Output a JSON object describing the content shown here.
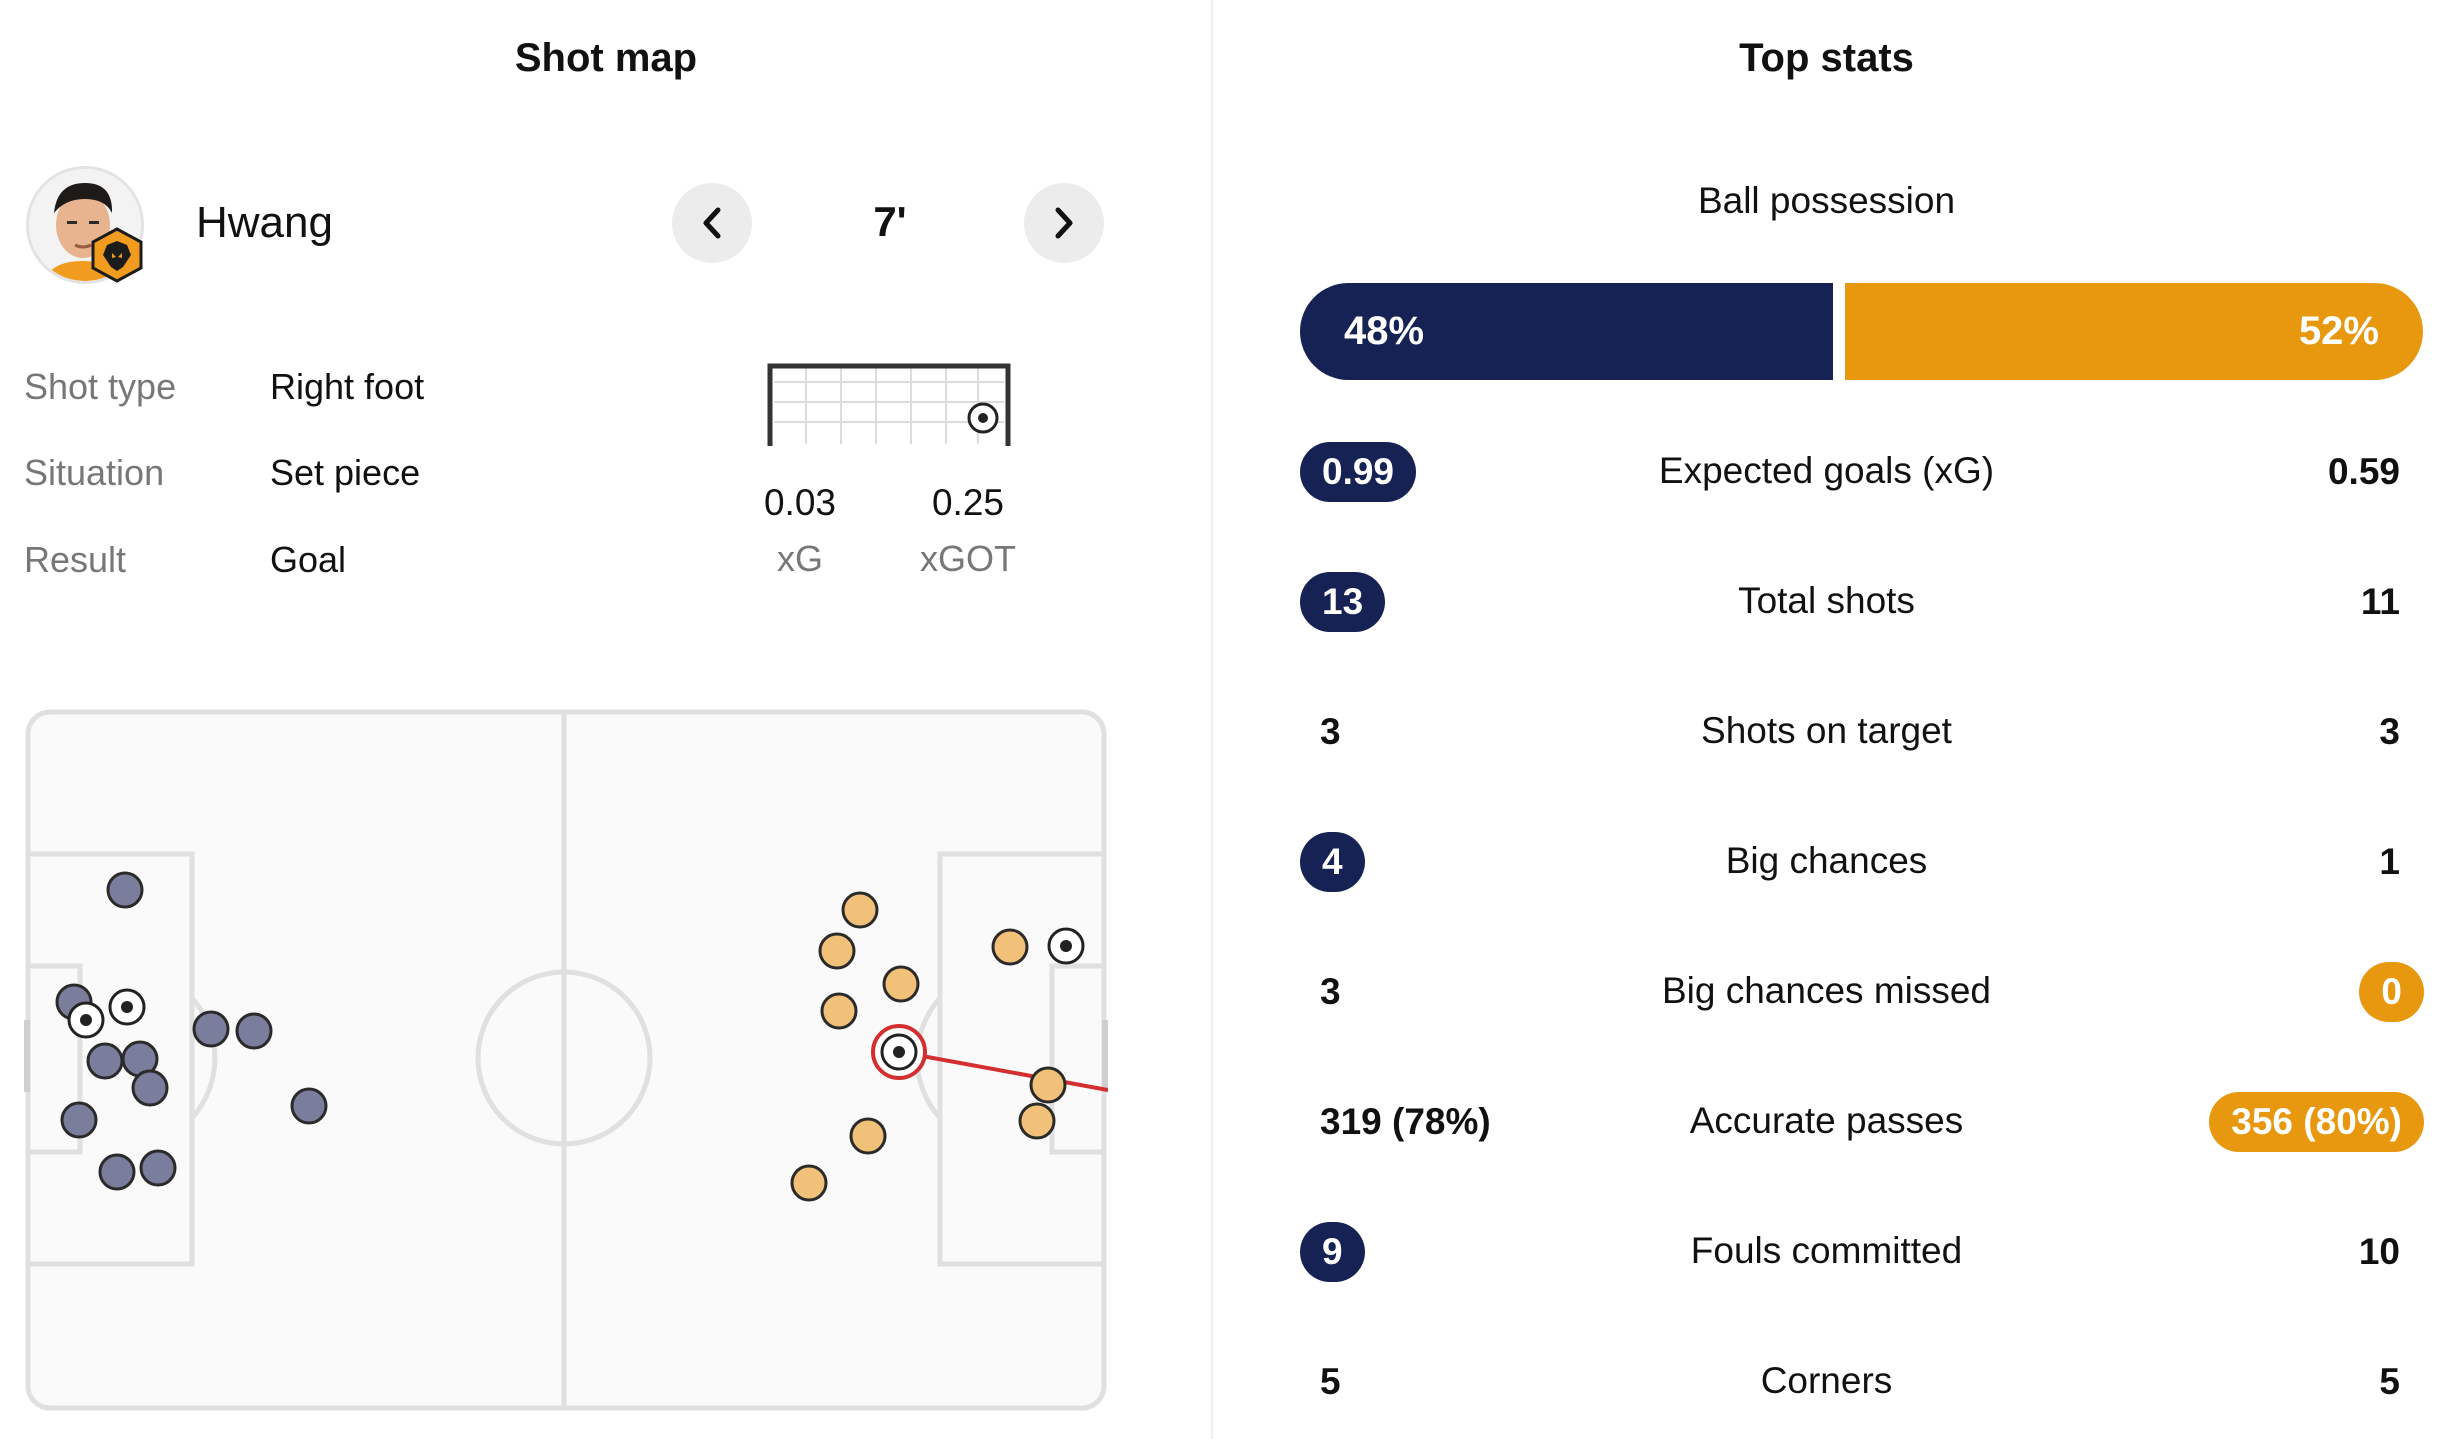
{
  "shot_map": {
    "title": "Shot map",
    "player": {
      "name": "Hwang",
      "avatar_icon": "player-avatar",
      "badge_icon": "wolves-badge-icon"
    },
    "nav": {
      "prev_icon": "chevron-left-icon",
      "next_icon": "chevron-right-icon",
      "minute": "7'"
    },
    "details": [
      {
        "label": "Shot type",
        "value": "Right foot"
      },
      {
        "label": "Situation",
        "value": "Set piece"
      },
      {
        "label": "Result",
        "value": "Goal"
      }
    ],
    "xg": {
      "value": "0.03",
      "label": "xG"
    },
    "xgot": {
      "value": "0.25",
      "label": "xGOT"
    },
    "colors": {
      "home": "#7a7d9c",
      "away": "#f2c179",
      "selected_ring": "#d32f2f"
    }
  },
  "top_stats": {
    "title": "Top stats",
    "possession": {
      "label": "Ball possession",
      "home": "48%",
      "away": "52%",
      "home_fraction": 0.48
    },
    "rows": [
      {
        "label": "Expected goals (xG)",
        "home": "0.99",
        "away": "0.59",
        "highlight": "home"
      },
      {
        "label": "Total shots",
        "home": "13",
        "away": "11",
        "highlight": "home"
      },
      {
        "label": "Shots on target",
        "home": "3",
        "away": "3",
        "highlight": "none"
      },
      {
        "label": "Big chances",
        "home": "4",
        "away": "1",
        "highlight": "home"
      },
      {
        "label": "Big chances missed",
        "home": "3",
        "away": "0",
        "highlight": "away"
      },
      {
        "label": "Accurate passes",
        "home": "319 (78%)",
        "away": "356 (80%)",
        "highlight": "away"
      },
      {
        "label": "Fouls committed",
        "home": "9",
        "away": "10",
        "highlight": "home"
      },
      {
        "label": "Corners",
        "home": "5",
        "away": "5",
        "highlight": "none"
      }
    ],
    "colors": {
      "home": "#172254",
      "away": "#e8980e"
    }
  }
}
